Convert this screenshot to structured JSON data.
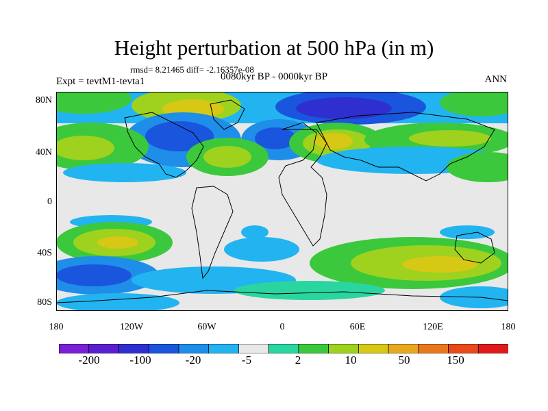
{
  "header": {
    "title": "Height perturbation at 500 hPa (in m)",
    "stats": "rmsd= 8.21465 diff= -2.16357e-08",
    "period": "0080kyr BP - 0000kyr BP",
    "experiment": "Expt = tevtM1-tevta1",
    "season": "ANN"
  },
  "axes": {
    "y_ticks": [
      "80N",
      "40N",
      "0",
      "40S",
      "80S"
    ],
    "x_ticks": [
      "180",
      "120W",
      "60W",
      "0",
      "60E",
      "120E",
      "180"
    ]
  },
  "colorbar": {
    "colors": [
      "#7a1fd6",
      "#5a1fcf",
      "#2f2fd0",
      "#1a55dd",
      "#1e8ee8",
      "#22b4f0",
      "#e8e8e8",
      "#2ad6a0",
      "#3cc83c",
      "#9ed21e",
      "#d6c814",
      "#e8a81e",
      "#e8781e",
      "#e84a1a",
      "#e01a1a"
    ],
    "labels": [
      "-200",
      "-100",
      "-20",
      "-5",
      "2",
      "10",
      "50",
      "150"
    ]
  },
  "colors": {
    "land_outline": "#000000",
    "neutral": "#e8e8e8"
  }
}
